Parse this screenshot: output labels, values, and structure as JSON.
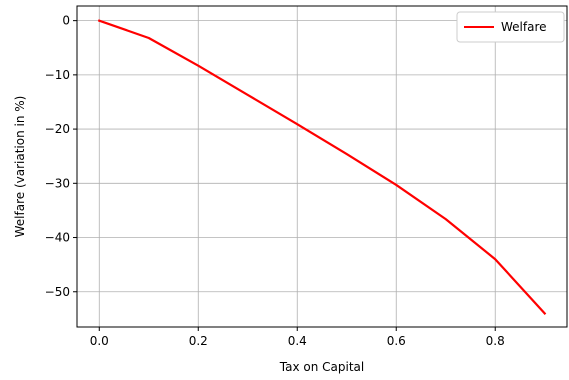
{
  "chart_data": {
    "type": "line",
    "title": "",
    "xlabel": "Tax on Capital",
    "ylabel": "Welfare (variation in %)",
    "xlim": [
      -0.045,
      0.945
    ],
    "ylim": [
      -56.5,
      2.7
    ],
    "xticks": [
      0.0,
      0.2,
      0.4,
      0.6,
      0.8
    ],
    "xtick_labels": [
      "0.0",
      "0.2",
      "0.4",
      "0.6",
      "0.8"
    ],
    "yticks": [
      0,
      -10,
      -20,
      -30,
      -40,
      -50
    ],
    "ytick_labels": [
      "0",
      "−10",
      "−20",
      "−30",
      "−40",
      "−50"
    ],
    "grid": true,
    "legend_position": "top-right",
    "series": [
      {
        "name": "Welfare",
        "color": "#ff0000",
        "x": [
          0.0,
          0.1,
          0.2,
          0.3,
          0.4,
          0.5,
          0.6,
          0.7,
          0.8,
          0.9
        ],
        "y": [
          0.0,
          -3.2,
          -8.3,
          -13.7,
          -19.1,
          -24.6,
          -30.3,
          -36.6,
          -44.0,
          -54.0
        ]
      }
    ]
  }
}
